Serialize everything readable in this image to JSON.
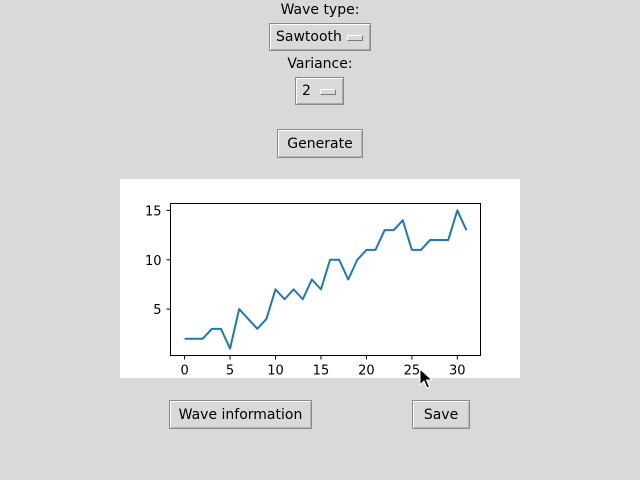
{
  "controls": {
    "wave_type_label": "Wave type:",
    "wave_type_value": "Sawtooth",
    "variance_label": "Variance:",
    "variance_value": "2",
    "generate_label": "Generate",
    "wave_info_label": "Wave information",
    "save_label": "Save"
  },
  "chart_data": {
    "type": "line",
    "title": "",
    "xlabel": "",
    "ylabel": "",
    "x": [
      0,
      1,
      2,
      3,
      4,
      5,
      6,
      7,
      8,
      9,
      10,
      11,
      12,
      13,
      14,
      15,
      16,
      17,
      18,
      19,
      20,
      21,
      22,
      23,
      24,
      25,
      26,
      27,
      28,
      29,
      30,
      31
    ],
    "series": [
      {
        "values": [
          2,
          2,
          2,
          3,
          3,
          1,
          5,
          4,
          3,
          4,
          7,
          6,
          7,
          6,
          8,
          7,
          10,
          10,
          8,
          10,
          11,
          11,
          13,
          13,
          14,
          11,
          11,
          12,
          12,
          12,
          15,
          13
        ],
        "color": "#1f77b4"
      }
    ],
    "xlim": [
      -1.55,
      32.55
    ],
    "ylim": [
      0.3,
      15.7
    ],
    "xticks": [
      0,
      5,
      10,
      15,
      20,
      25,
      30
    ],
    "yticks": [
      5,
      10,
      15
    ],
    "grid": false
  }
}
